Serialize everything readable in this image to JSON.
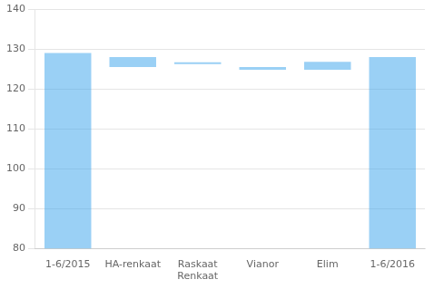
{
  "chart_data": {
    "type": "bar",
    "categories": [
      "1-6/2015",
      "HA-renkaat",
      "Raskaat\nRenkaat",
      "Vianor",
      "Elim",
      "1-6/2016"
    ],
    "values": [
      [
        80,
        129.0
      ],
      [
        125.5,
        128.0
      ],
      [
        126.2,
        126.7
      ],
      [
        124.8,
        125.5
      ],
      [
        124.8,
        126.8
      ],
      [
        80,
        128.0
      ]
    ],
    "ylim": [
      80,
      140
    ],
    "yticks": [
      80,
      90,
      100,
      110,
      120,
      130,
      140
    ],
    "grid": true
  }
}
